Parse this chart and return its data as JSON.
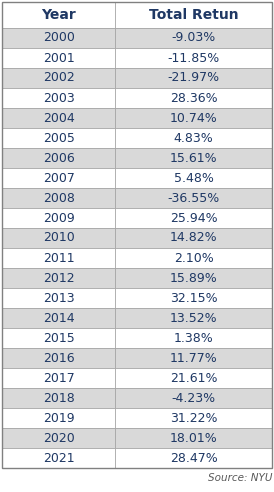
{
  "headers": [
    "Year",
    "Total Retun"
  ],
  "rows": [
    [
      "2000",
      "-9.03%"
    ],
    [
      "2001",
      "-11.85%"
    ],
    [
      "2002",
      "-21.97%"
    ],
    [
      "2003",
      "28.36%"
    ],
    [
      "2004",
      "10.74%"
    ],
    [
      "2005",
      "4.83%"
    ],
    [
      "2006",
      "15.61%"
    ],
    [
      "2007",
      "5.48%"
    ],
    [
      "2008",
      "-36.55%"
    ],
    [
      "2009",
      "25.94%"
    ],
    [
      "2010",
      "14.82%"
    ],
    [
      "2011",
      "2.10%"
    ],
    [
      "2012",
      "15.89%"
    ],
    [
      "2013",
      "32.15%"
    ],
    [
      "2014",
      "13.52%"
    ],
    [
      "2015",
      "1.38%"
    ],
    [
      "2016",
      "11.77%"
    ],
    [
      "2017",
      "21.61%"
    ],
    [
      "2018",
      "-4.23%"
    ],
    [
      "2019",
      "31.22%"
    ],
    [
      "2020",
      "18.01%"
    ],
    [
      "2021",
      "28.47%"
    ]
  ],
  "shaded_rows": [
    0,
    2,
    4,
    6,
    8,
    10,
    12,
    14,
    16,
    18,
    20
  ],
  "row_bg_shaded": "#d9d9d9",
  "row_bg_white": "#ffffff",
  "header_bg": "#ffffff",
  "text_color": "#1f3864",
  "header_text_color": "#1f3864",
  "source_text": "Source: NYU",
  "source_color": "#595959",
  "figsize": [
    2.74,
    4.92
  ],
  "dpi": 100,
  "border_color": "#808080",
  "cell_border_color": "#a0a0a0",
  "header_fontsize": 10,
  "data_fontsize": 9,
  "source_fontsize": 7.5
}
